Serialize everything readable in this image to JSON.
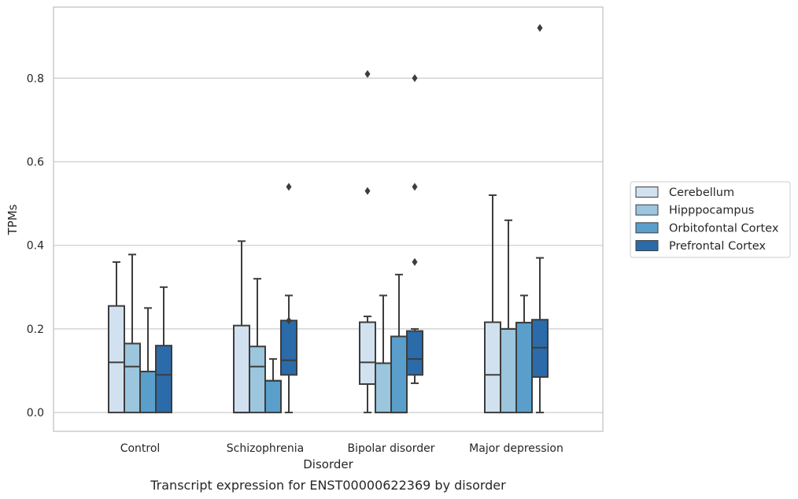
{
  "chart_data": {
    "type": "box",
    "caption": "Transcript expression for ENST00000622369 by disorder",
    "xlabel": "Disorder",
    "ylabel": "TPMs",
    "categories": [
      "Control",
      "Schizophrenia",
      "Bipolar disorder",
      "Major depression"
    ],
    "ylim": [
      -0.045,
      0.97
    ],
    "yticks": [
      0.0,
      0.2,
      0.4,
      0.6,
      0.8
    ],
    "ytick_labels": [
      "0.0",
      "0.2",
      "0.4",
      "0.6",
      "0.8"
    ],
    "grid": "horizontal",
    "legend": {
      "placement": "right-outside-center"
    },
    "series": [
      {
        "name": "Cerebellum",
        "color": "#d1e1f0",
        "boxes": [
          {
            "whisker_low": 0.0,
            "q1": 0.0,
            "median": 0.12,
            "q3": 0.255,
            "whisker_high": 0.36,
            "outliers": []
          },
          {
            "whisker_low": 0.0,
            "q1": 0.0,
            "median": 0.0,
            "q3": 0.208,
            "whisker_high": 0.41,
            "outliers": []
          },
          {
            "whisker_low": 0.0,
            "q1": 0.068,
            "median": 0.12,
            "q3": 0.216,
            "whisker_high": 0.23,
            "outliers": [
              0.53,
              0.81
            ]
          },
          {
            "whisker_low": 0.0,
            "q1": 0.0,
            "median": 0.09,
            "q3": 0.216,
            "whisker_high": 0.52,
            "outliers": []
          }
        ]
      },
      {
        "name": "Hipppocampus",
        "color": "#9cc5de",
        "boxes": [
          {
            "whisker_low": 0.0,
            "q1": 0.0,
            "median": 0.11,
            "q3": 0.165,
            "whisker_high": 0.378,
            "outliers": []
          },
          {
            "whisker_low": 0.0,
            "q1": 0.0,
            "median": 0.11,
            "q3": 0.158,
            "whisker_high": 0.32,
            "outliers": []
          },
          {
            "whisker_low": 0.0,
            "q1": 0.0,
            "median": 0.118,
            "q3": 0.118,
            "whisker_high": 0.28,
            "outliers": []
          },
          {
            "whisker_low": 0.0,
            "q1": 0.0,
            "median": 0.2,
            "q3": 0.2,
            "whisker_high": 0.46,
            "outliers": []
          }
        ]
      },
      {
        "name": "Orbitofontal Cortex",
        "color": "#5a9fcc",
        "boxes": [
          {
            "whisker_low": 0.0,
            "q1": 0.0,
            "median": 0.098,
            "q3": 0.098,
            "whisker_high": 0.25,
            "outliers": []
          },
          {
            "whisker_low": 0.0,
            "q1": 0.0,
            "median": 0.076,
            "q3": 0.076,
            "whisker_high": 0.128,
            "outliers": []
          },
          {
            "whisker_low": 0.0,
            "q1": 0.0,
            "median": 0.0,
            "q3": 0.182,
            "whisker_high": 0.33,
            "outliers": []
          },
          {
            "whisker_low": 0.0,
            "q1": 0.0,
            "median": 0.215,
            "q3": 0.215,
            "whisker_high": 0.28,
            "outliers": []
          }
        ]
      },
      {
        "name": "Prefrontal Cortex",
        "color": "#2b6ba9",
        "boxes": [
          {
            "whisker_low": 0.0,
            "q1": 0.0,
            "median": 0.09,
            "q3": 0.16,
            "whisker_high": 0.3,
            "outliers": []
          },
          {
            "whisker_low": 0.0,
            "q1": 0.09,
            "median": 0.125,
            "q3": 0.22,
            "whisker_high": 0.28,
            "outliers": [
              0.54,
              0.22
            ]
          },
          {
            "whisker_low": 0.07,
            "q1": 0.09,
            "median": 0.128,
            "q3": 0.195,
            "whisker_high": 0.2,
            "outliers": [
              0.36,
              0.54,
              0.8
            ]
          },
          {
            "whisker_low": 0.0,
            "q1": 0.085,
            "median": 0.155,
            "q3": 0.222,
            "whisker_high": 0.37,
            "outliers": [
              0.92
            ]
          }
        ]
      }
    ]
  }
}
